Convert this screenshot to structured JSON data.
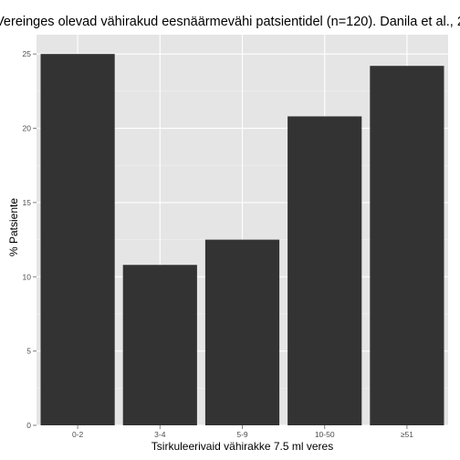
{
  "chart_data": {
    "type": "bar",
    "title": "Vereinges olevad vähirakud eesnäärmevähi patsientidel (n=120). Danila et al., 2",
    "xlabel": "Tsirkuleerivaid vähirakke 7.5 ml veres",
    "ylabel": "% Patsiente",
    "categories": [
      "0-2",
      "3-4",
      "5-9",
      "10-50",
      "≥51"
    ],
    "values": [
      25.0,
      10.8,
      12.5,
      20.8,
      24.2
    ],
    "ylim": [
      0,
      26.3
    ],
    "yticks": [
      "0",
      "5",
      "10",
      "15",
      "20",
      "25"
    ],
    "grid": true,
    "colors": {
      "bar": "#333333",
      "panel": "#e5e5e5",
      "grid_major": "#ffffff",
      "grid_minor": "#f2f2f2"
    }
  }
}
